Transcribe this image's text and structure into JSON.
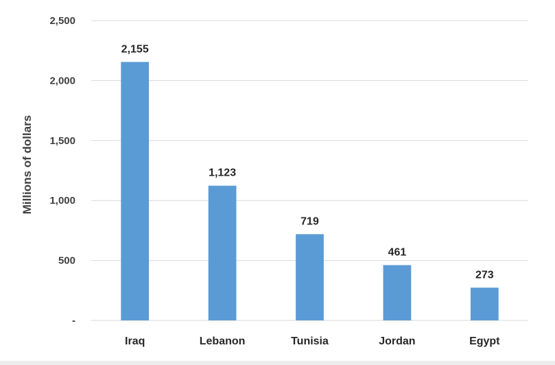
{
  "chart_data": {
    "type": "bar",
    "categories": [
      "Iraq",
      "Lebanon",
      "Tunisia",
      "Jordan",
      "Egypt"
    ],
    "values": [
      2155,
      1123,
      719,
      461,
      273
    ],
    "data_labels": [
      "2,155",
      "1,123",
      "719",
      "461",
      "273"
    ],
    "title": "",
    "xlabel": "",
    "ylabel": "Millions of dollars",
    "ylim": [
      0,
      2500
    ],
    "yticks": [
      0,
      500,
      1000,
      1500,
      2000,
      2500
    ],
    "ytick_labels": [
      "-",
      "500",
      "1,000",
      "1,500",
      "2,000",
      "2,500"
    ],
    "grid": "horizontal",
    "bar_color": "#5b9bd5",
    "gridline_color": "#d9d9d9"
  }
}
